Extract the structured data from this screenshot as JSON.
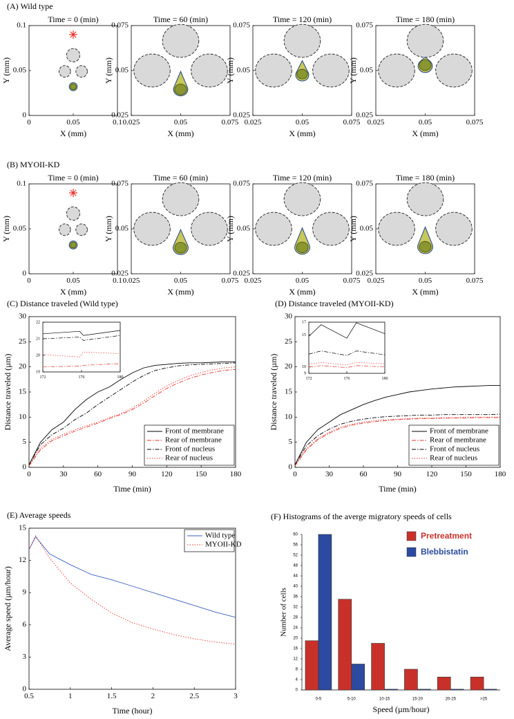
{
  "chart_data": [
    {
      "type": "snapshot",
      "panel_label": "(A) Wild type",
      "title": "Time = 0 (min)",
      "x_label": "X (mm)",
      "y_label": "Y (mm)",
      "xlim": [
        0,
        0.1
      ],
      "ylim": [
        0,
        0.1
      ],
      "xticks": [
        0,
        0.05,
        0.1
      ],
      "yticks": [
        0,
        0.05,
        0.1
      ],
      "obstacles": [
        {
          "x": 0.05,
          "y": 0.067,
          "r": 0.0075
        },
        {
          "x": 0.0405,
          "y": 0.049,
          "r": 0.0065
        },
        {
          "x": 0.0595,
          "y": 0.049,
          "r": 0.0065
        }
      ],
      "target": [
        0.05,
        0.09
      ],
      "membrane": {
        "x": 0.05,
        "y": 0.032,
        "r": 0.0045,
        "tip": 0.0365
      },
      "nucleus": {
        "x": 0.05,
        "y": 0.032,
        "r": 0.0033
      }
    },
    {
      "type": "snapshot",
      "title": "Time = 60 (min)",
      "x_label": "X (mm)",
      "y_label": "Y (mm)",
      "xlim": [
        0.025,
        0.075
      ],
      "ylim": [
        0.025,
        0.075
      ],
      "xticks": [
        0.025,
        0.05,
        0.075
      ],
      "yticks": [
        0.025,
        0.05,
        0.075
      ],
      "obstacles": [
        {
          "x": 0.05,
          "y": 0.0665,
          "r": 0.0092
        },
        {
          "x": 0.0355,
          "y": 0.05,
          "r": 0.0092
        },
        {
          "x": 0.0645,
          "y": 0.05,
          "r": 0.0092
        }
      ],
      "membrane": {
        "x": 0.05,
        "y": 0.0395,
        "r": 0.0036,
        "tip": 0.0495
      },
      "nucleus": {
        "x": 0.05,
        "y": 0.0395,
        "r": 0.003
      }
    },
    {
      "type": "snapshot",
      "title": "Time = 120 (min)",
      "x_label": "X (mm)",
      "y_label": "Y (mm)",
      "xlim": [
        0.025,
        0.075
      ],
      "ylim": [
        0.025,
        0.075
      ],
      "xticks": [
        0.025,
        0.05,
        0.075
      ],
      "yticks": [
        0.025,
        0.05,
        0.075
      ],
      "obstacles": [
        {
          "x": 0.05,
          "y": 0.0665,
          "r": 0.0092
        },
        {
          "x": 0.0355,
          "y": 0.05,
          "r": 0.0092
        },
        {
          "x": 0.0645,
          "y": 0.05,
          "r": 0.0092
        }
      ],
      "membrane": {
        "x": 0.05,
        "y": 0.0475,
        "r": 0.0033,
        "tip": 0.0555
      },
      "nucleus": {
        "x": 0.05,
        "y": 0.048,
        "r": 0.0027
      }
    },
    {
      "type": "snapshot",
      "title": "Time = 180 (min)",
      "x_label": "X (mm)",
      "y_label": "Y (mm)",
      "xlim": [
        0.025,
        0.075
      ],
      "ylim": [
        0.025,
        0.075
      ],
      "xticks": [
        0.025,
        0.05,
        0.075
      ],
      "yticks": [
        0.025,
        0.05,
        0.075
      ],
      "obstacles": [
        {
          "x": 0.05,
          "y": 0.0665,
          "r": 0.0092
        },
        {
          "x": 0.0355,
          "y": 0.05,
          "r": 0.0092
        },
        {
          "x": 0.0645,
          "y": 0.05,
          "r": 0.0092
        }
      ],
      "membrane": {
        "x": 0.05,
        "y": 0.0525,
        "r": 0.0036,
        "tip": 0.0575
      },
      "nucleus": {
        "x": 0.05,
        "y": 0.053,
        "r": 0.003
      }
    },
    {
      "type": "snapshot",
      "panel_label": "(B) MYOII-KD",
      "title": "Time = 0 (min)",
      "x_label": "X (mm)",
      "y_label": "Y (mm)",
      "xlim": [
        0,
        0.1
      ],
      "ylim": [
        0,
        0.1
      ],
      "xticks": [
        0,
        0.05,
        0.1
      ],
      "yticks": [
        0,
        0.05,
        0.1
      ],
      "obstacles": [
        {
          "x": 0.05,
          "y": 0.067,
          "r": 0.0075
        },
        {
          "x": 0.0405,
          "y": 0.049,
          "r": 0.0065
        },
        {
          "x": 0.0595,
          "y": 0.049,
          "r": 0.0065
        }
      ],
      "target": [
        0.05,
        0.09
      ],
      "membrane": {
        "x": 0.05,
        "y": 0.032,
        "r": 0.0045,
        "tip": 0.0365
      },
      "nucleus": {
        "x": 0.05,
        "y": 0.032,
        "r": 0.0033
      }
    },
    {
      "type": "snapshot",
      "title": "Time = 60 (min)",
      "x_label": "X (mm)",
      "y_label": "Y (mm)",
      "xlim": [
        0.025,
        0.075
      ],
      "ylim": [
        0.025,
        0.075
      ],
      "xticks": [
        0.025,
        0.05,
        0.075
      ],
      "yticks": [
        0.025,
        0.05,
        0.075
      ],
      "obstacles": [
        {
          "x": 0.05,
          "y": 0.0665,
          "r": 0.0092
        },
        {
          "x": 0.0355,
          "y": 0.05,
          "r": 0.0092
        },
        {
          "x": 0.0645,
          "y": 0.05,
          "r": 0.0092
        }
      ],
      "membrane": {
        "x": 0.05,
        "y": 0.0395,
        "r": 0.0038,
        "tip": 0.0495
      },
      "nucleus": {
        "x": 0.05,
        "y": 0.0395,
        "r": 0.003
      }
    },
    {
      "type": "snapshot",
      "title": "Time = 120 (min)",
      "x_label": "X (mm)",
      "y_label": "Y (mm)",
      "xlim": [
        0.025,
        0.075
      ],
      "ylim": [
        0.025,
        0.075
      ],
      "xticks": [
        0.025,
        0.05,
        0.075
      ],
      "yticks": [
        0.025,
        0.05,
        0.075
      ],
      "obstacles": [
        {
          "x": 0.05,
          "y": 0.0665,
          "r": 0.0092
        },
        {
          "x": 0.0355,
          "y": 0.05,
          "r": 0.0092
        },
        {
          "x": 0.0645,
          "y": 0.05,
          "r": 0.0092
        }
      ],
      "membrane": {
        "x": 0.05,
        "y": 0.0397,
        "r": 0.0038,
        "tip": 0.0505
      },
      "nucleus": {
        "x": 0.05,
        "y": 0.0397,
        "r": 0.003
      }
    },
    {
      "type": "snapshot",
      "title": "Time = 180 (min)",
      "x_label": "X (mm)",
      "y_label": "Y (mm)",
      "xlim": [
        0.025,
        0.075
      ],
      "ylim": [
        0.025,
        0.075
      ],
      "xticks": [
        0.025,
        0.05,
        0.075
      ],
      "yticks": [
        0.025,
        0.05,
        0.075
      ],
      "obstacles": [
        {
          "x": 0.05,
          "y": 0.0665,
          "r": 0.0092
        },
        {
          "x": 0.0355,
          "y": 0.05,
          "r": 0.0092
        },
        {
          "x": 0.0645,
          "y": 0.05,
          "r": 0.0092
        }
      ],
      "membrane": {
        "x": 0.05,
        "y": 0.04,
        "r": 0.0038,
        "tip": 0.051
      },
      "nucleus": {
        "x": 0.05,
        "y": 0.04,
        "r": 0.003
      }
    },
    {
      "type": "line",
      "title": "(C) Distance traveled (Wild type)",
      "x_label": "Time (min)",
      "y_label": "Distance traveled (µm)",
      "xlim": [
        0,
        180
      ],
      "ylim": [
        0,
        30
      ],
      "xticks": [
        0,
        30,
        60,
        90,
        120,
        150,
        180
      ],
      "yticks": [
        0,
        5,
        10,
        15,
        20,
        25,
        30
      ],
      "legend": "lower right",
      "x": [
        0,
        10,
        20,
        30,
        40,
        50,
        60,
        70,
        80,
        90,
        100,
        110,
        120,
        130,
        140,
        150,
        160,
        170,
        180
      ],
      "series": [
        {
          "name": "Front of membrane",
          "color": "#000000",
          "dash": "solid",
          "values": [
            0.5,
            5,
            7.5,
            9,
            11.5,
            13.5,
            15,
            16,
            17.5,
            18.8,
            19.8,
            20.3,
            20.5,
            20.7,
            20.8,
            20.8,
            20.9,
            21,
            21
          ]
        },
        {
          "name": "Rear of membrane",
          "color": "#e8322a",
          "dash": "dashdot",
          "values": [
            0.3,
            3.5,
            5.3,
            6.3,
            7.2,
            8,
            8.8,
            9.7,
            10.5,
            11.5,
            12.8,
            14.3,
            15.7,
            16.8,
            17.7,
            18.4,
            18.9,
            19.3,
            19.5
          ]
        },
        {
          "name": "Front of nucleus",
          "color": "#000000",
          "dash": "dashdot",
          "values": [
            0.5,
            4.5,
            6.5,
            7.8,
            9.5,
            10.8,
            12.5,
            14,
            15.5,
            17,
            18.3,
            19.3,
            19.8,
            20.2,
            20.4,
            20.5,
            20.6,
            20.7,
            20.8
          ]
        },
        {
          "name": "Rear of nucleus",
          "color": "#e8322a",
          "dash": "dotted",
          "values": [
            0.4,
            3.8,
            5.6,
            6.6,
            7.5,
            8.3,
            9,
            9.9,
            10.7,
            11.8,
            13.2,
            14.8,
            16.2,
            17.3,
            18.2,
            18.9,
            19.4,
            19.8,
            20
          ]
        }
      ]
    },
    {
      "type": "line",
      "xlim": [
        172,
        180
      ],
      "ylim": [
        19,
        22
      ],
      "xticks": [
        172,
        176,
        180
      ],
      "yticks": [
        19,
        20,
        21,
        22
      ],
      "x": [
        172,
        175.8,
        176.2,
        180
      ],
      "series": [
        {
          "color": "#000000",
          "dash": "solid",
          "values": [
            21.3,
            21.45,
            21.2,
            21.5
          ]
        },
        {
          "color": "#e8322a",
          "dash": "dashdot",
          "values": [
            19.3,
            19.35,
            19.4,
            19.5
          ]
        },
        {
          "color": "#000000",
          "dash": "dashdot",
          "values": [
            21.0,
            21.1,
            20.9,
            21.2
          ]
        },
        {
          "color": "#e8322a",
          "dash": "dotted",
          "values": [
            20.05,
            19.9,
            20.2,
            20.1
          ]
        }
      ]
    },
    {
      "type": "line",
      "title": "(D) Distance traveled (MYOII-KD)",
      "x_label": "Time (min)",
      "y_label": "Distance traveled (µm)",
      "xlim": [
        0,
        180
      ],
      "ylim": [
        0,
        30
      ],
      "xticks": [
        0,
        30,
        60,
        90,
        120,
        150,
        180
      ],
      "yticks": [
        0,
        5,
        10,
        15,
        20,
        25,
        30
      ],
      "legend": "lower right",
      "x": [
        0,
        10,
        20,
        30,
        40,
        50,
        60,
        70,
        80,
        90,
        100,
        110,
        120,
        130,
        140,
        150,
        160,
        170,
        180
      ],
      "series": [
        {
          "name": "Front of membrane",
          "color": "#000000",
          "dash": "solid",
          "values": [
            0.5,
            5,
            7.5,
            9,
            10.5,
            11.5,
            12.5,
            13.3,
            14,
            14.5,
            15,
            15.3,
            15.6,
            15.8,
            16,
            16.1,
            16.2,
            16.3,
            16.3
          ]
        },
        {
          "name": "Rear of membrane",
          "color": "#e8322a",
          "dash": "dashdot",
          "values": [
            0.3,
            3.5,
            5.5,
            6.8,
            7.8,
            8.4,
            8.8,
            9.1,
            9.3,
            9.5,
            9.6,
            9.7,
            9.7,
            9.8,
            9.8,
            9.8,
            9.9,
            9.9,
            9.9
          ]
        },
        {
          "name": "Front of nucleus",
          "color": "#000000",
          "dash": "dashdot",
          "values": [
            0.5,
            4.3,
            6.3,
            7.6,
            8.6,
            9.2,
            9.6,
            9.9,
            10.1,
            10.2,
            10.3,
            10.4,
            10.4,
            10.5,
            10.5,
            10.5,
            10.5,
            10.5,
            10.6
          ]
        },
        {
          "name": "Rear of nucleus",
          "color": "#e8322a",
          "dash": "dotted",
          "values": [
            0.4,
            3.7,
            5.7,
            7,
            8,
            8.6,
            9,
            9.3,
            9.5,
            9.6,
            9.7,
            9.8,
            9.8,
            9.9,
            9.9,
            10,
            10,
            10,
            10
          ]
        }
      ]
    },
    {
      "type": "line",
      "xlim": [
        172,
        180
      ],
      "ylim": [
        9,
        17
      ],
      "xticks": [
        172,
        176,
        180
      ],
      "yticks": [
        9,
        10,
        15,
        17
      ],
      "x": [
        172,
        173.3,
        176,
        177,
        180
      ],
      "series": [
        {
          "color": "#000000",
          "dash": "solid",
          "values": [
            14.8,
            16.6,
            14.5,
            16.9,
            15.2
          ]
        },
        {
          "color": "#e8322a",
          "dash": "dashdot",
          "values": [
            10,
            10.2,
            9.9,
            10.2,
            10
          ]
        },
        {
          "color": "#000000",
          "dash": "dashdot",
          "values": [
            12,
            12.5,
            11.8,
            12.5,
            11.9
          ]
        },
        {
          "color": "#e8322a",
          "dash": "dotted",
          "values": [
            10.4,
            10.7,
            10.3,
            10.7,
            10.5
          ]
        }
      ]
    },
    {
      "type": "line",
      "title": "(E) Average speeds",
      "x_label": "Time (hour)",
      "y_label": "Average speed (µm/hour)",
      "xlim": [
        0.5,
        3
      ],
      "ylim": [
        0,
        15
      ],
      "xticks": [
        0.5,
        1,
        1.5,
        2,
        2.5,
        3
      ],
      "yticks": [
        0,
        3,
        6,
        9,
        12,
        15
      ],
      "legend": "upper right",
      "x": [
        0.5,
        0.58,
        0.75,
        1,
        1.25,
        1.5,
        1.75,
        2,
        2.25,
        2.5,
        2.75,
        3
      ],
      "series": [
        {
          "name": "Wild type",
          "color": "#3b5fc0",
          "dash": "solid",
          "values": [
            13,
            14.2,
            12.6,
            11.6,
            10.7,
            10.2,
            9.6,
            9.0,
            8.4,
            7.8,
            7.2,
            6.7
          ]
        },
        {
          "name": "MYOII-KD",
          "color": "#e8322a",
          "dash": "dotted",
          "values": [
            13,
            14.3,
            12.2,
            9.9,
            8.4,
            7.1,
            6.2,
            5.6,
            5.1,
            4.7,
            4.4,
            4.2
          ]
        }
      ]
    },
    {
      "type": "bar",
      "title": "(F) Histograms of the averge migratory speeds of cells",
      "x_label": "Speed (µm/hour)",
      "y_label": "Number of cells",
      "ylim": [
        0,
        60
      ],
      "yticks": [
        0,
        4,
        8,
        12,
        16,
        20,
        24,
        28,
        32,
        36,
        40,
        44,
        48,
        52,
        56,
        60
      ],
      "legend": "upper right",
      "categories": [
        "0-5",
        "5-10",
        "10-15",
        "15-20",
        "20-25",
        ">25"
      ],
      "series": [
        {
          "name": "Pretreatment",
          "color": "#c8312a",
          "values": [
            19,
            35,
            18,
            8,
            5,
            5
          ]
        },
        {
          "name": "Blebbistatin",
          "color": "#2b4aa0",
          "values": [
            60,
            10,
            0.3,
            0.3,
            0.3,
            0.3
          ]
        }
      ]
    }
  ]
}
